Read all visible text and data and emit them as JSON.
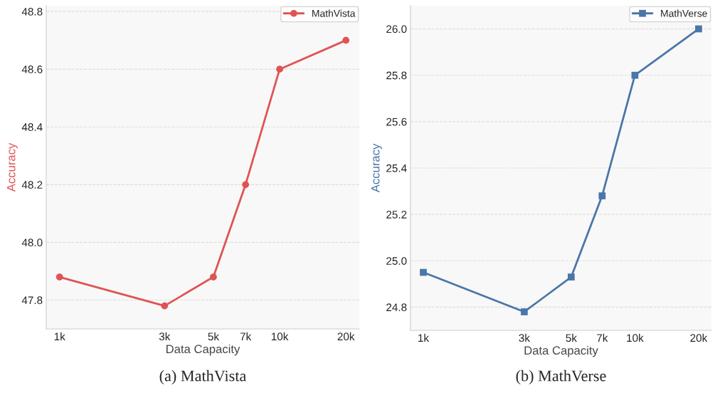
{
  "chart_data": [
    {
      "type": "line",
      "xlabel": "Data Capacity",
      "ylabel": "Accuracy",
      "log": "x",
      "x": [
        1000,
        3000,
        5000,
        7000,
        10000,
        20000
      ],
      "series": [
        {
          "name": "MathVista",
          "color": "#e05353",
          "values": [
            47.88,
            47.78,
            47.88,
            48.2,
            48.6,
            48.7
          ]
        }
      ],
      "marker": "circle",
      "xlim": [
        870,
        23000
      ],
      "xticks": [
        {
          "value": 1000,
          "label": "1k"
        },
        {
          "value": 3000,
          "label": "3k"
        },
        {
          "value": 5000,
          "label": "5k"
        },
        {
          "value": 7000,
          "label": "7k"
        },
        {
          "value": 10000,
          "label": "10k"
        },
        {
          "value": 20000,
          "label": "20k"
        }
      ],
      "ylim": [
        47.7,
        48.82
      ],
      "yticks": [
        47.8,
        {
          "value": 48,
          "label": "48.0"
        },
        48.2,
        48.4,
        48.6,
        48.8
      ],
      "grid": "y",
      "legend": "top right",
      "annotations": [
        "(a) MathVista"
      ]
    },
    {
      "type": "line",
      "xlabel": "Data Capacity",
      "ylabel": "Accuracy",
      "log": "x",
      "x": [
        1000,
        3000,
        5000,
        7000,
        10000,
        20000
      ],
      "series": [
        {
          "name": "MathVerse",
          "color": "#4a76a8",
          "values": [
            24.95,
            24.78,
            24.93,
            25.28,
            25.8,
            26.0
          ]
        }
      ],
      "marker": "square",
      "xlim": [
        870,
        23000
      ],
      "xticks": [
        {
          "value": 1000,
          "label": "1k"
        },
        {
          "value": 3000,
          "label": "3k"
        },
        {
          "value": 5000,
          "label": "5k"
        },
        {
          "value": 7000,
          "label": "7k"
        },
        {
          "value": 10000,
          "label": "10k"
        },
        {
          "value": 20000,
          "label": "20k"
        }
      ],
      "ylim": [
        24.7,
        26.1
      ],
      "yticks": [
        24.8,
        {
          "value": 25,
          "label": "25.0"
        },
        25.2,
        25.4,
        25.6,
        25.8,
        {
          "value": 26,
          "label": "26.0"
        }
      ],
      "grid": "y",
      "legend": "top right",
      "annotations": [
        "(b) MathVerse"
      ]
    }
  ]
}
